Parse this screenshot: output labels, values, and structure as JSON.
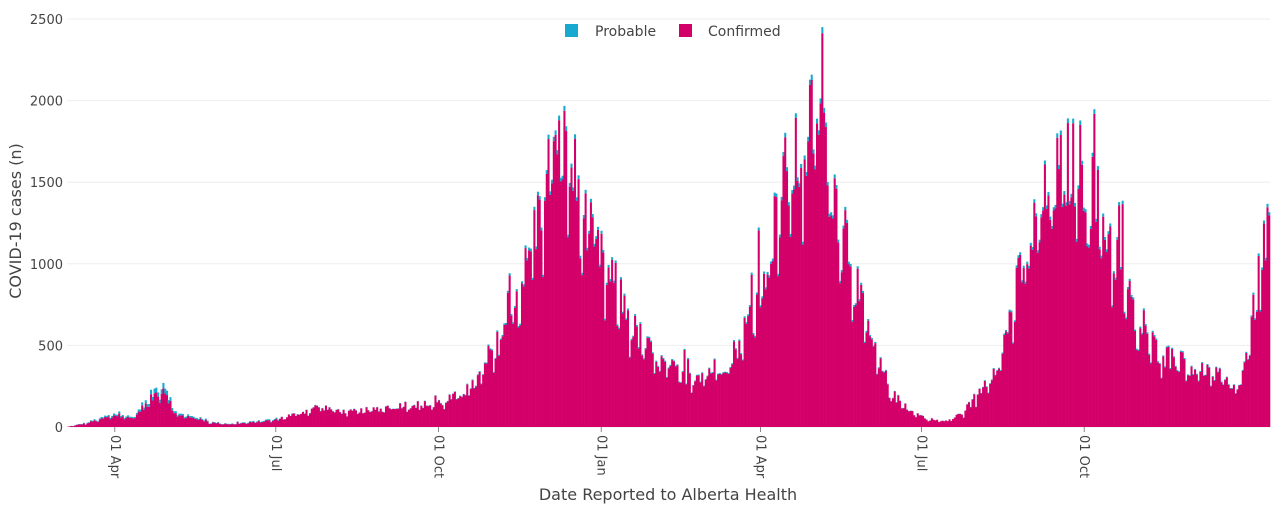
{
  "chart_data": {
    "type": "bar",
    "stacked": true,
    "xlabel": "Date Reported to Alberta Health",
    "ylabel": "COVID-19 cases (n)",
    "ylim": [
      0,
      2500
    ],
    "y_ticks": [
      "0",
      "500",
      "1000",
      "1500",
      "2000",
      "2500"
    ],
    "x_ticks": [
      "01 Apr",
      "01 Jul",
      "01 Oct",
      "01 Jan",
      "01 Apr",
      "01 Jul",
      "01 Oct"
    ],
    "x_start": "2020-03-05",
    "x_end": "2022-01-14",
    "legend": {
      "placement": "top-center"
    },
    "grid": true,
    "series": [
      {
        "name": "Probable",
        "color": "#17a9cf"
      },
      {
        "name": "Confirmed",
        "color": "#d4006a"
      }
    ],
    "anchors": [
      [
        "2020-03-05",
        2
      ],
      [
        "2020-03-15",
        25
      ],
      [
        "2020-03-25",
        60
      ],
      [
        "2020-04-01",
        80
      ],
      [
        "2020-04-10",
        60
      ],
      [
        "2020-04-20",
        180
      ],
      [
        "2020-04-28",
        290
      ],
      [
        "2020-05-05",
        80
      ],
      [
        "2020-05-15",
        70
      ],
      [
        "2020-05-25",
        30
      ],
      [
        "2020-06-05",
        20
      ],
      [
        "2020-06-20",
        35
      ],
      [
        "2020-07-01",
        50
      ],
      [
        "2020-07-15",
        90
      ],
      [
        "2020-07-25",
        130
      ],
      [
        "2020-08-10",
        90
      ],
      [
        "2020-08-25",
        110
      ],
      [
        "2020-09-10",
        140
      ],
      [
        "2020-09-25",
        140
      ],
      [
        "2020-10-05",
        160
      ],
      [
        "2020-10-20",
        250
      ],
      [
        "2020-10-31",
        430
      ],
      [
        "2020-11-10",
        700
      ],
      [
        "2020-11-20",
        1000
      ],
      [
        "2020-11-30",
        1500
      ],
      [
        "2020-12-07",
        1750
      ],
      [
        "2020-12-14",
        1700
      ],
      [
        "2020-12-22",
        1300
      ],
      [
        "2020-12-31",
        1050
      ],
      [
        "2021-01-10",
        850
      ],
      [
        "2021-01-20",
        600
      ],
      [
        "2021-02-01",
        420
      ],
      [
        "2021-02-15",
        320
      ],
      [
        "2021-03-01",
        340
      ],
      [
        "2021-03-15",
        420
      ],
      [
        "2021-03-25",
        650
      ],
      [
        "2021-04-05",
        1050
      ],
      [
        "2021-04-15",
        1550
      ],
      [
        "2021-04-25",
        1700
      ],
      [
        "2021-05-05",
        2050
      ],
      [
        "2021-05-12",
        1500
      ],
      [
        "2021-05-20",
        1200
      ],
      [
        "2021-05-28",
        750
      ],
      [
        "2021-06-05",
        450
      ],
      [
        "2021-06-15",
        200
      ],
      [
        "2021-06-25",
        100
      ],
      [
        "2021-07-05",
        50
      ],
      [
        "2021-07-15",
        35
      ],
      [
        "2021-07-25",
        90
      ],
      [
        "2021-08-05",
        250
      ],
      [
        "2021-08-15",
        450
      ],
      [
        "2021-08-25",
        900
      ],
      [
        "2021-09-05",
        1300
      ],
      [
        "2021-09-15",
        1550
      ],
      [
        "2021-09-25",
        1650
      ],
      [
        "2021-10-01",
        1600
      ],
      [
        "2021-10-10",
        1350
      ],
      [
        "2021-10-20",
        1050
      ],
      [
        "2021-11-01",
        600
      ],
      [
        "2021-11-15",
        450
      ],
      [
        "2021-12-01",
        380
      ],
      [
        "2021-12-15",
        320
      ],
      [
        "2021-12-28",
        250
      ],
      [
        "2022-01-05",
        700
      ],
      [
        "2022-01-14",
        1350
      ]
    ]
  }
}
